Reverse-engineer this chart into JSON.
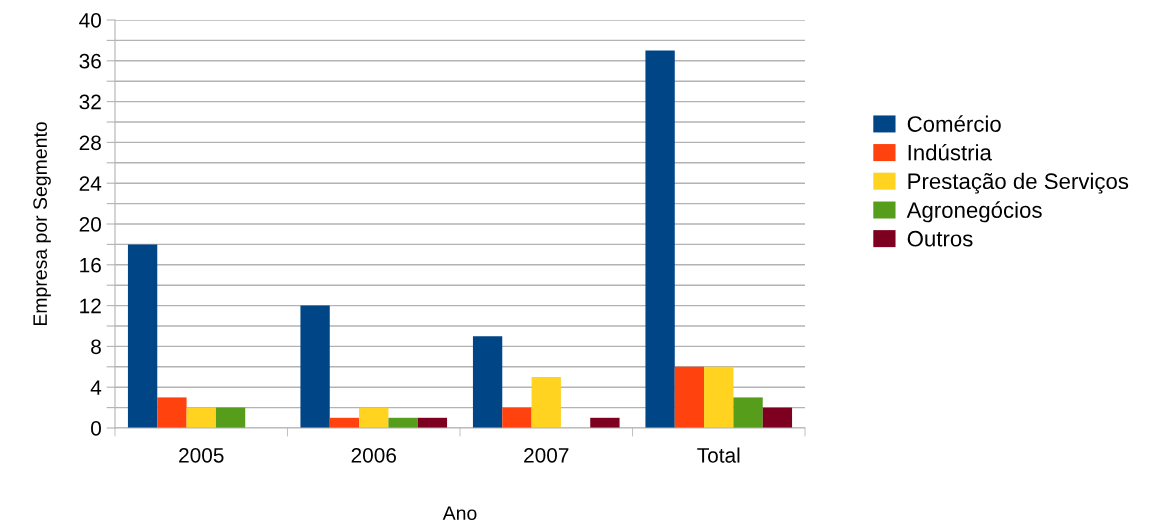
{
  "chart_data": {
    "type": "bar",
    "xlabel": "Ano",
    "ylabel": "Empresa por Segmento",
    "categories": [
      "2005",
      "2006",
      "2007",
      "Total"
    ],
    "series": [
      {
        "name": "Comércio",
        "color": "#004586",
        "values": [
          18,
          12,
          9,
          37
        ]
      },
      {
        "name": "Indústria",
        "color": "#ff420e",
        "values": [
          3,
          1,
          2,
          6
        ]
      },
      {
        "name": "Prestação de Serviços",
        "color": "#ffd320",
        "values": [
          2,
          2,
          5,
          6
        ]
      },
      {
        "name": "Agronegócios",
        "color": "#579d1c",
        "values": [
          2,
          1,
          0,
          3
        ]
      },
      {
        "name": "Outros",
        "color": "#7e0021",
        "values": [
          0,
          1,
          1,
          2
        ]
      }
    ],
    "ylim": [
      0,
      40
    ],
    "yticks": [
      0,
      {
        "value": 2,
        "label": null
      },
      4,
      {
        "value": 6,
        "label": null
      },
      8,
      {
        "value": 10,
        "label": null
      },
      12,
      {
        "value": 14,
        "label": null
      },
      16,
      {
        "value": 18,
        "label": null
      },
      20,
      {
        "value": 22,
        "label": null
      },
      24,
      {
        "value": 26,
        "label": null
      },
      28,
      {
        "value": 30,
        "label": null
      },
      32,
      {
        "value": 34,
        "label": null
      },
      36,
      {
        "value": 38,
        "label": null
      },
      40
    ],
    "grid": "y",
    "legend": "right"
  }
}
